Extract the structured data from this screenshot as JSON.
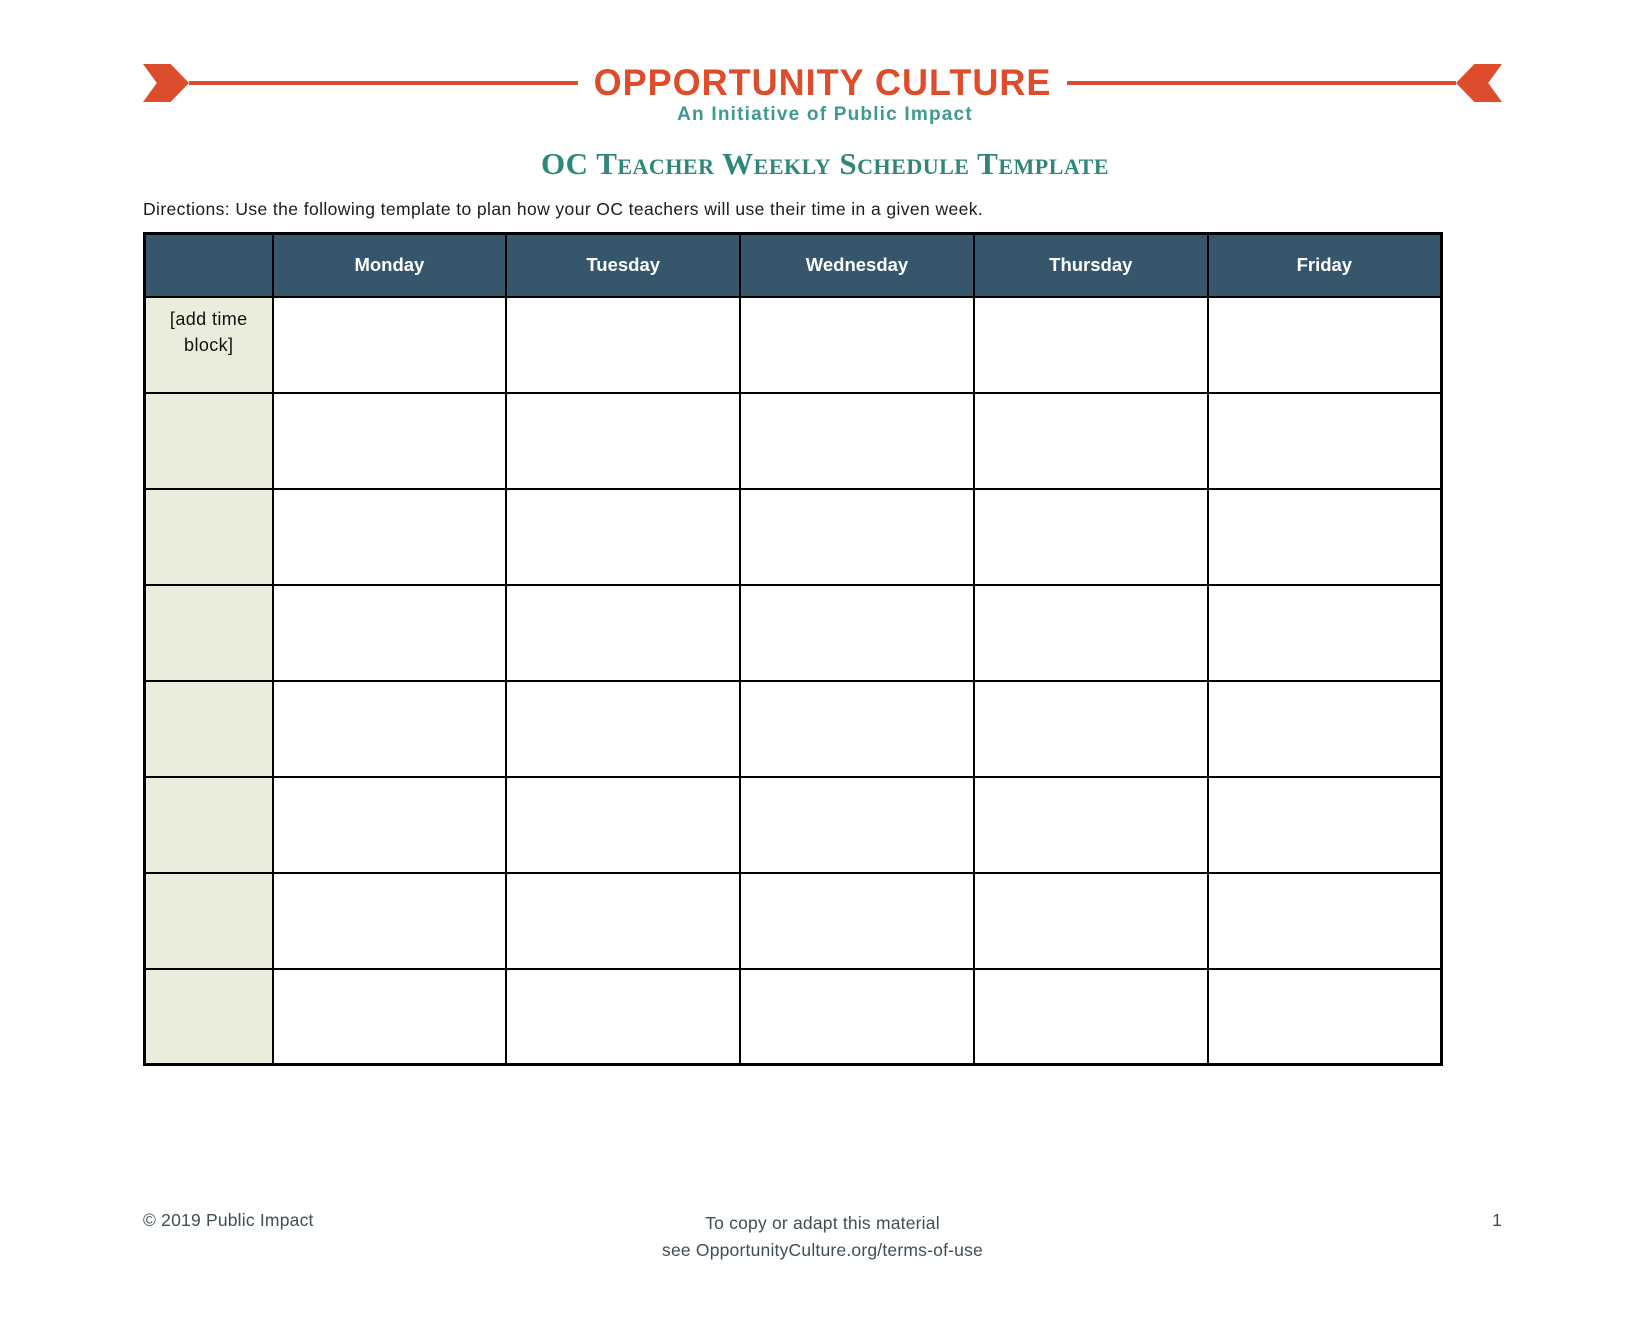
{
  "brand": {
    "logo_text": "OPPORTUNITY CULTURE",
    "tagline": "An Initiative of Public Impact",
    "colors": {
      "orange": "#dd4d2b",
      "tagline_teal": "#3e9a90",
      "title_teal": "#2e8779",
      "table_header_navy": "#35566b",
      "time_column_bg": "#eaeddb",
      "footer_text": "#3e4e59"
    }
  },
  "title": "OC Teacher Weekly Schedule Template",
  "directions": "Directions: Use the following template to plan how your OC teachers will use their time in a given week.",
  "table": {
    "day_headers": [
      "Monday",
      "Tuesday",
      "Wednesday",
      "Thursday",
      "Friday"
    ],
    "time_column_placeholder": "[add time block]",
    "row_count": 8
  },
  "footer": {
    "copyright": "© 2019 Public Impact",
    "center_line1": "To copy or adapt this material",
    "center_line2": "see OpportunityCulture.org/terms-of-use",
    "page_number": "1"
  }
}
